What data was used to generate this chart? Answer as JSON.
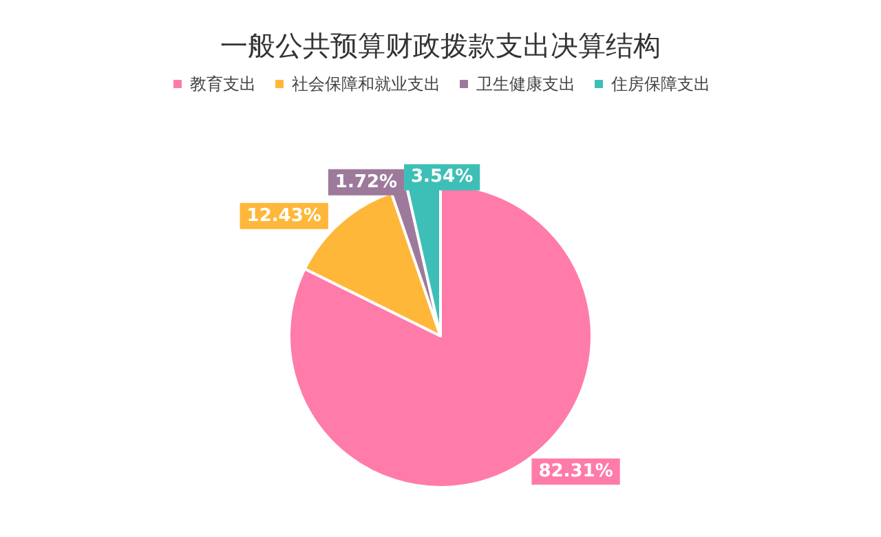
{
  "chart_data": {
    "type": "pie",
    "title": "一般公共预算财政拨款支出决算结构",
    "categories": [
      "教育支出",
      "社会保障和就业支出",
      "卫生健康支出",
      "住房保障支出"
    ],
    "values": [
      82.31,
      12.43,
      1.72,
      3.54
    ],
    "colors": [
      "#ff7ba9",
      "#ffb73a",
      "#9d7a9c",
      "#3dbfb7"
    ],
    "value_labels": [
      "82.31%",
      "12.43%",
      "1.72%",
      "3.54%"
    ],
    "legend": "top"
  }
}
